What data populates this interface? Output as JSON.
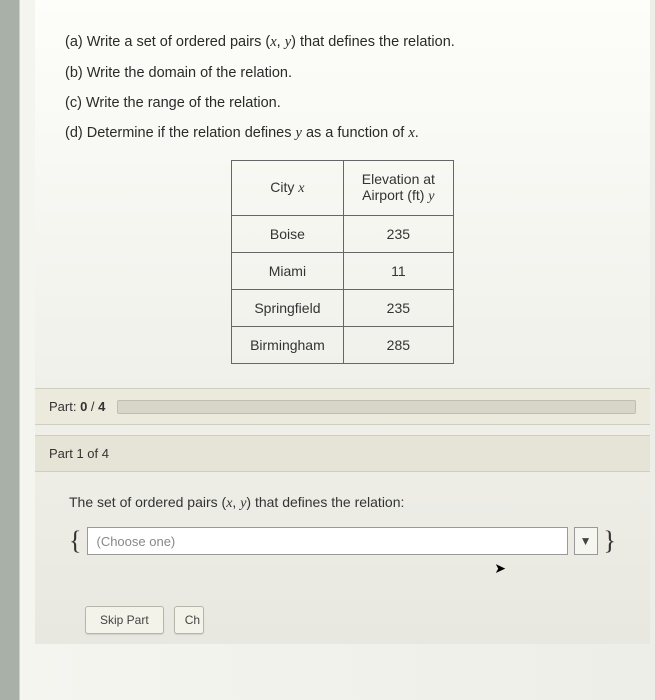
{
  "prompts": {
    "a": "(a) Write a set of ordered pairs (x, y) that defines the relation.",
    "b": "(b) Write the domain of the relation.",
    "c": "(c) Write the range of the relation.",
    "d": "(d) Determine if the relation defines y as a function of x."
  },
  "table": {
    "headers": {
      "col1_line1": "City x",
      "col2_line1": "Elevation at",
      "col2_line2": "Airport (ft) y"
    },
    "rows": [
      {
        "city": "Boise",
        "elev": "235"
      },
      {
        "city": "Miami",
        "elev": "11"
      },
      {
        "city": "Springfield",
        "elev": "235"
      },
      {
        "city": "Birmingham",
        "elev": "285"
      }
    ]
  },
  "progress": {
    "label_prefix": "Part: ",
    "current": "0",
    "sep": " / ",
    "total": "4"
  },
  "part1": {
    "header": "Part 1 of 4",
    "question": "The set of ordered pairs (x, y) that defines the relation:",
    "dropdown_placeholder": "(Choose one)"
  },
  "buttons": {
    "skip": "Skip Part",
    "check": "Ch"
  },
  "colors": {
    "page_bg_top": "#fdfdfa",
    "page_bg_bottom": "#e8e8e0",
    "panel_bg": "#eceadd",
    "border": "#d0cec0",
    "text": "#333333"
  }
}
